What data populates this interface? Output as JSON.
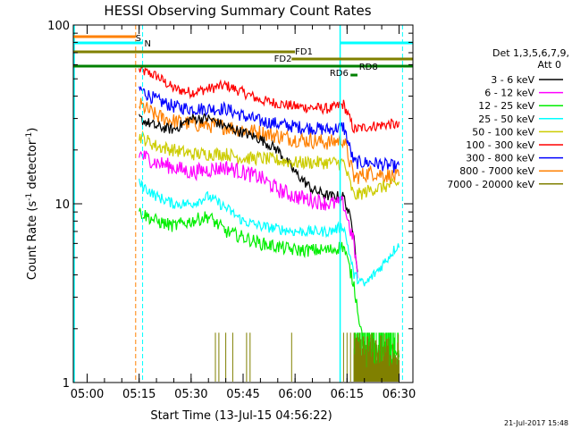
{
  "chart_data": {
    "type": "line",
    "title": "HESSI Observing Summary Count Rates",
    "ylabel": "Count Rate (s⁻¹ detector⁻¹)",
    "ylabel_main": "Count Rate (s",
    "ylabel_sup1": "-1",
    "ylabel_mid": " detector",
    "ylabel_sup2": "-1",
    "ylabel_end": ")",
    "xlabel": "Start Time (13-Jul-15 04:56:22)",
    "footer_date": "21-Jul-2017 15:48",
    "y_scale": "log",
    "ylim": [
      1,
      100
    ],
    "xlim": [
      "04:56",
      "06:34"
    ],
    "grid": false,
    "x_ticks": [
      "05:00",
      "05:15",
      "05:30",
      "05:45",
      "06:00",
      "06:15",
      "06:30"
    ],
    "y_ticks": [
      "1",
      "10",
      "100"
    ],
    "legend": {
      "placement": "right",
      "header1": "Det 1,3,5,6,7,9,",
      "header2": "Att 0",
      "entries": [
        {
          "label": "3 - 6 keV",
          "color": "#000000"
        },
        {
          "label": "6 - 12 keV",
          "color": "#ff00ff"
        },
        {
          "label": "12 - 25 keV",
          "color": "#00ee00"
        },
        {
          "label": "25 - 50 keV",
          "color": "#00ffff"
        },
        {
          "label": "50 - 100 keV",
          "color": "#cccc00"
        },
        {
          "label": "100 - 300 keV",
          "color": "#ff0000"
        },
        {
          "label": "300 - 800 keV",
          "color": "#0000ff"
        },
        {
          "label": "800 - 7000 keV",
          "color": "#ff8000"
        },
        {
          "label": "7000 - 20000 keV",
          "color": "#808000"
        }
      ]
    },
    "annotations": [
      {
        "label": "S",
        "color": "#ff8000"
      },
      {
        "label": "N",
        "color": "#00ffff"
      },
      {
        "label": "FD1",
        "color": "#808000"
      },
      {
        "label": "FD2",
        "color": "#808000"
      },
      {
        "label": "RD6",
        "color": "#008000"
      },
      {
        "label": "RD8",
        "color": "#008000"
      }
    ],
    "series": [
      {
        "color": "#ff0000",
        "points": [
          [
            "05:15",
            56
          ],
          [
            "05:20",
            52
          ],
          [
            "05:25",
            44
          ],
          [
            "05:30",
            42
          ],
          [
            "05:40",
            46
          ],
          [
            "05:45",
            42
          ],
          [
            "05:50",
            38
          ],
          [
            "06:00",
            35
          ],
          [
            "06:10",
            34
          ],
          [
            "06:14",
            36
          ],
          [
            "06:17",
            26
          ],
          [
            "06:21",
            27
          ],
          [
            "06:28",
            28
          ],
          [
            "06:30",
            27
          ]
        ]
      },
      {
        "color": "#0000ff",
        "points": [
          [
            "05:15",
            44
          ],
          [
            "05:20",
            38
          ],
          [
            "05:25",
            35
          ],
          [
            "05:30",
            34
          ],
          [
            "05:40",
            34
          ],
          [
            "05:45",
            31
          ],
          [
            "05:50",
            29
          ],
          [
            "06:00",
            27
          ],
          [
            "06:10",
            26
          ],
          [
            "06:14",
            27
          ],
          [
            "06:17",
            17
          ],
          [
            "06:22",
            17
          ],
          [
            "06:30",
            16
          ]
        ]
      },
      {
        "color": "#ff8000",
        "points": [
          [
            "05:15",
            36
          ],
          [
            "05:20",
            31
          ],
          [
            "05:25",
            29
          ],
          [
            "05:30",
            28
          ],
          [
            "05:40",
            27
          ],
          [
            "05:45",
            26
          ],
          [
            "05:50",
            25
          ],
          [
            "06:00",
            23
          ],
          [
            "06:10",
            22
          ],
          [
            "06:14",
            23
          ],
          [
            "06:17",
            14
          ],
          [
            "06:22",
            15
          ],
          [
            "06:30",
            14
          ]
        ]
      },
      {
        "color": "#000000",
        "points": [
          [
            "05:15",
            30
          ],
          [
            "05:20",
            27
          ],
          [
            "05:25",
            26
          ],
          [
            "05:30",
            30
          ],
          [
            "05:35",
            30
          ],
          [
            "05:40",
            27
          ],
          [
            "05:45",
            25
          ],
          [
            "05:50",
            23
          ],
          [
            "05:55",
            20
          ],
          [
            "06:00",
            15
          ],
          [
            "06:05",
            12
          ],
          [
            "06:10",
            11
          ],
          [
            "06:14",
            11
          ],
          [
            "06:17",
            7
          ],
          [
            "06:18",
            4
          ]
        ]
      },
      {
        "color": "#cccc00",
        "points": [
          [
            "05:15",
            24
          ],
          [
            "05:20",
            21
          ],
          [
            "05:25",
            20
          ],
          [
            "05:30",
            19
          ],
          [
            "05:40",
            19
          ],
          [
            "05:45",
            18
          ],
          [
            "05:50",
            18
          ],
          [
            "06:00",
            17
          ],
          [
            "06:10",
            17
          ],
          [
            "06:14",
            17
          ],
          [
            "06:17",
            11
          ],
          [
            "06:22",
            12
          ],
          [
            "06:30",
            13
          ]
        ]
      },
      {
        "color": "#ff00ff",
        "points": [
          [
            "05:15",
            19
          ],
          [
            "05:20",
            17
          ],
          [
            "05:25",
            16
          ],
          [
            "05:30",
            15
          ],
          [
            "05:40",
            16
          ],
          [
            "05:45",
            15
          ],
          [
            "05:50",
            14
          ],
          [
            "05:55",
            12
          ],
          [
            "06:00",
            11
          ],
          [
            "06:10",
            10
          ],
          [
            "06:14",
            10
          ],
          [
            "06:17",
            6
          ],
          [
            "06:18",
            4
          ]
        ]
      },
      {
        "color": "#00ffff",
        "points": [
          [
            "05:15",
            13
          ],
          [
            "05:20",
            11
          ],
          [
            "05:25",
            10
          ],
          [
            "05:30",
            10
          ],
          [
            "05:35",
            11
          ],
          [
            "05:40",
            9.5
          ],
          [
            "05:45",
            8
          ],
          [
            "05:50",
            7.5
          ],
          [
            "06:00",
            7
          ],
          [
            "06:10",
            7
          ],
          [
            "06:14",
            7.5
          ],
          [
            "06:17",
            4
          ],
          [
            "06:20",
            3.5
          ],
          [
            "06:25",
            4.5
          ],
          [
            "06:30",
            6
          ]
        ]
      },
      {
        "color": "#00ee00",
        "points": [
          [
            "05:15",
            9
          ],
          [
            "05:20",
            8
          ],
          [
            "05:25",
            7.5
          ],
          [
            "05:30",
            8
          ],
          [
            "05:35",
            8.5
          ],
          [
            "05:40",
            7
          ],
          [
            "05:45",
            6.5
          ],
          [
            "05:50",
            6
          ],
          [
            "06:00",
            5.5
          ],
          [
            "06:10",
            5.5
          ],
          [
            "06:14",
            5.8
          ],
          [
            "06:17",
            3.5
          ],
          [
            "06:20",
            1.5
          ],
          [
            "06:30",
            1.5
          ]
        ]
      }
    ]
  }
}
